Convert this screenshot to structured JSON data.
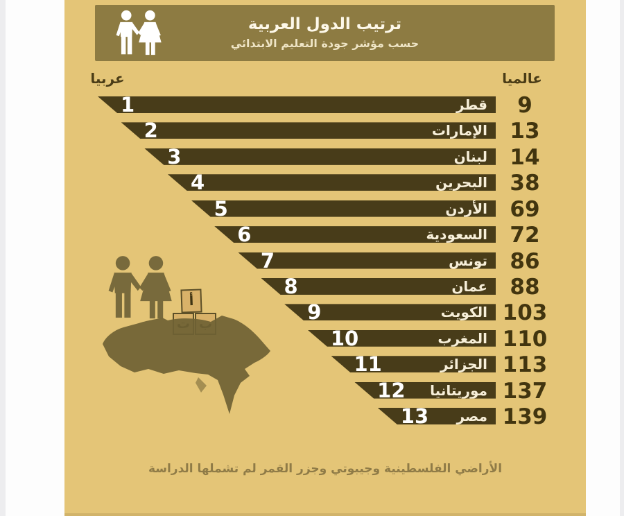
{
  "header": {
    "title": "ترتيب الدول العربية",
    "subtitle": "حسب مؤشر جودة التعليم الابتدائي"
  },
  "columns": {
    "global": "عالميا",
    "arab": "عربيا"
  },
  "footnote": "الأراضي الفلسطينية وجيبوتي وجزر القمر لم تشملها الدراسة",
  "blocks": {
    "letters": [
      "أ",
      "ب",
      "ت"
    ]
  },
  "icons": {
    "header_icon": "man-and-woman-holding-hands-icon",
    "mid_icon": "man-and-woman-holding-hands-icon",
    "map_icon": "arab-world-map-silhouette"
  },
  "colors": {
    "bg": "#e4c577",
    "header": "#8d7b42",
    "bar": "#483c19",
    "dark_text": "#42350f",
    "map": "#6f6234",
    "white_text": "#f7efd9"
  },
  "rows": [
    {
      "country": "قطر",
      "arab_rank": "1",
      "global_rank": "9"
    },
    {
      "country": "الإمارات",
      "arab_rank": "2",
      "global_rank": "13"
    },
    {
      "country": "لبنان",
      "arab_rank": "3",
      "global_rank": "14"
    },
    {
      "country": "البحرين",
      "arab_rank": "4",
      "global_rank": "38"
    },
    {
      "country": "الأردن",
      "arab_rank": "5",
      "global_rank": "69"
    },
    {
      "country": "السعودية",
      "arab_rank": "6",
      "global_rank": "72"
    },
    {
      "country": "تونس",
      "arab_rank": "7",
      "global_rank": "86"
    },
    {
      "country": "عمان",
      "arab_rank": "8",
      "global_rank": "88"
    },
    {
      "country": "الكويت",
      "arab_rank": "9",
      "global_rank": "103"
    },
    {
      "country": "المغرب",
      "arab_rank": "10",
      "global_rank": "110"
    },
    {
      "country": "الجزائر",
      "arab_rank": "11",
      "global_rank": "113"
    },
    {
      "country": "موريتانيا",
      "arab_rank": "12",
      "global_rank": "137"
    },
    {
      "country": "مصر",
      "arab_rank": "13",
      "global_rank": "139"
    }
  ],
  "chart_data": {
    "type": "bar",
    "orientation": "horizontal",
    "title": "ترتيب الدول العربية",
    "subtitle": "حسب مؤشر جودة التعليم الابتدائي",
    "categories": [
      "قطر",
      "الإمارات",
      "لبنان",
      "البحرين",
      "الأردن",
      "السعودية",
      "تونس",
      "عمان",
      "الكويت",
      "المغرب",
      "الجزائر",
      "موريتانيا",
      "مصر"
    ],
    "series": [
      {
        "name": "عربيا",
        "values": [
          1,
          2,
          3,
          4,
          5,
          6,
          7,
          8,
          9,
          10,
          11,
          12,
          13
        ]
      },
      {
        "name": "عالميا",
        "values": [
          9,
          13,
          14,
          38,
          69,
          72,
          86,
          88,
          103,
          110,
          113,
          137,
          139
        ]
      }
    ],
    "legend_position": "column-headers",
    "grid": false,
    "annotation": "الأراضي الفلسطينية وجيبوتي وجزر القمر لم تشملها الدراسة",
    "layout_note": "bar length decreases with arab rank; arab rank printed in white at slanted bar tip, global rank printed in dark brown to the right of each bar"
  }
}
